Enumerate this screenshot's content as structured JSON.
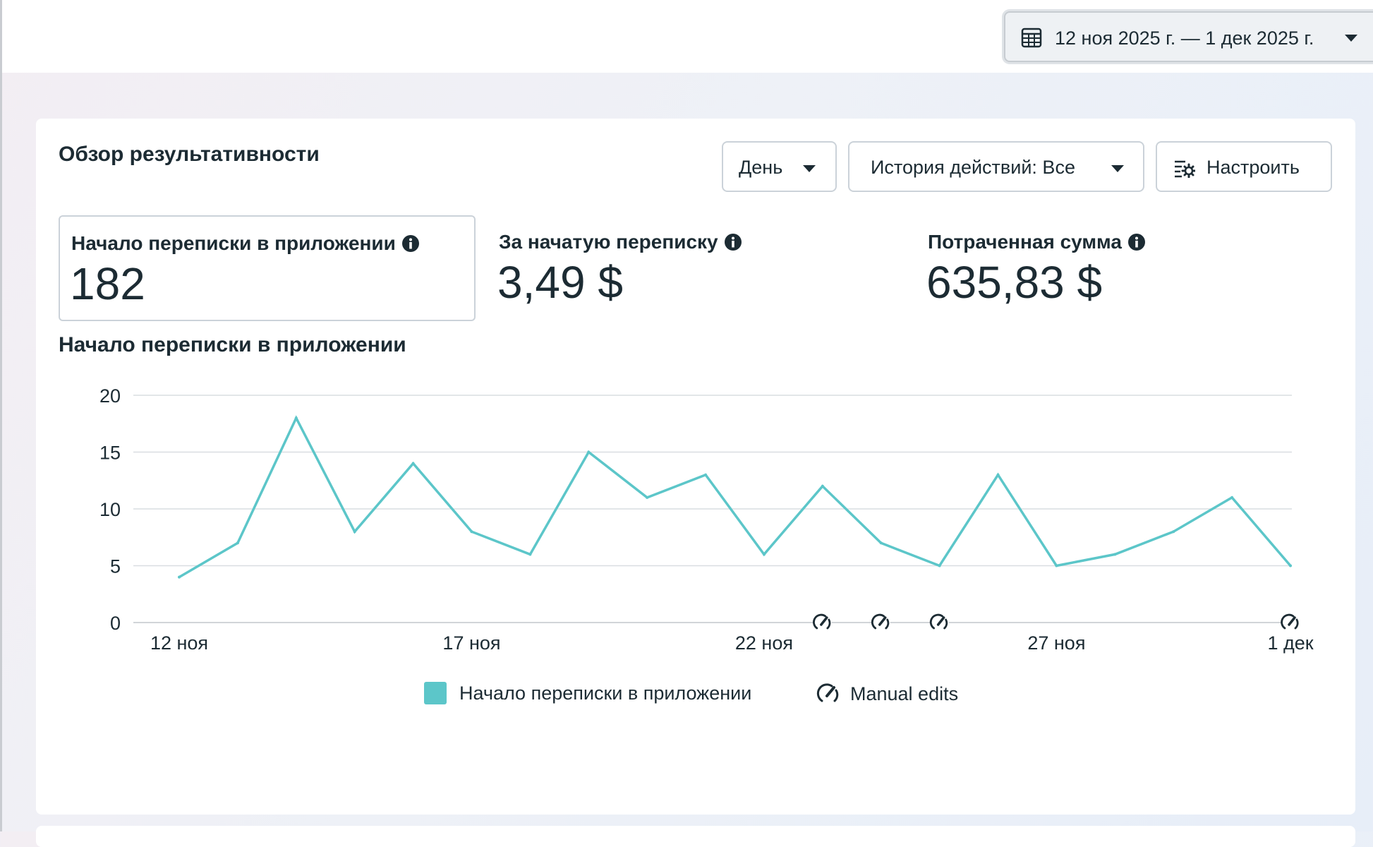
{
  "date_range": {
    "label": "12 ноя 2025 г. — 1 дек 2025 г.",
    "icon": "calendar-icon"
  },
  "card": {
    "title": "Обзор результативности",
    "controls": {
      "granularity": "День",
      "history": "История действий: Все",
      "customize": "Настроить"
    }
  },
  "metrics": [
    {
      "label": "Начало переписки в приложении",
      "value": "182",
      "selected": true
    },
    {
      "label": "За начатую переписку",
      "value": "3,49 $",
      "selected": false
    },
    {
      "label": "Потраченная сумма",
      "value": "635,83 $",
      "selected": false
    }
  ],
  "chart_title": "Начало переписки в приложении",
  "legend": {
    "series": "Начало переписки в приложении",
    "manual": "Manual edits"
  },
  "colors": {
    "series": "#5cc6c9",
    "grid": "#d9dde1",
    "text": "#1c2b33"
  },
  "chart_data": {
    "type": "line",
    "x": [
      "12 ноя",
      "13 ноя",
      "14 ноя",
      "15 ноя",
      "16 ноя",
      "17 ноя",
      "18 ноя",
      "19 ноя",
      "20 ноя",
      "21 ноя",
      "22 ноя",
      "23 ноя",
      "24 ноя",
      "25 ноя",
      "26 ноя",
      "27 ноя",
      "28 ноя",
      "29 ноя",
      "30 ноя",
      "1 дек"
    ],
    "series": [
      {
        "name": "Начало переписки в приложении",
        "values": [
          4,
          7,
          18,
          8,
          14,
          8,
          6,
          15,
          11,
          13,
          6,
          12,
          7,
          5,
          13,
          5,
          6,
          8,
          11,
          5
        ]
      }
    ],
    "x_tick_labels": [
      "12 ноя",
      "17 ноя",
      "22 ноя",
      "27 ноя",
      "1 дек"
    ],
    "y_ticks": [
      0,
      5,
      10,
      15,
      20
    ],
    "ylim": [
      0,
      20
    ],
    "grid": true,
    "manual_edits_at": [
      "23 ноя",
      "24 ноя",
      "25 ноя",
      "1 дек"
    ],
    "legend_position": "bottom-center"
  }
}
